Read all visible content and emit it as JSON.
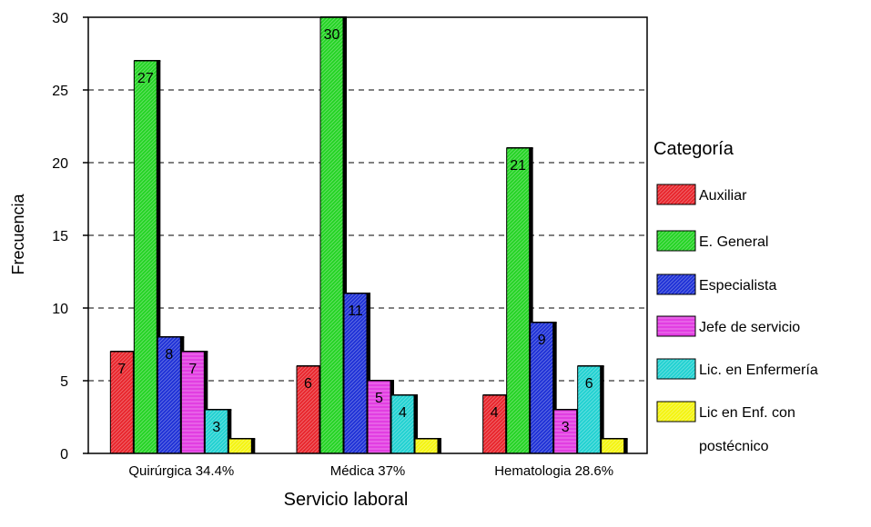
{
  "chart_data": {
    "type": "bar",
    "title": "",
    "xlabel": "Servicio laboral",
    "ylabel": "Frecuencia",
    "ylim": [
      0,
      30
    ],
    "yticks": [
      0,
      5,
      10,
      15,
      20,
      25,
      30
    ],
    "grid": "dashed horizontal",
    "legend_position": "right",
    "legend_title": "Categoría",
    "categories": [
      "Quirúrgica 34.4%",
      "Médica 37%",
      "Hematologia 28.6%"
    ],
    "series": [
      {
        "name": "Auxiliar",
        "legend_lines": [
          "Auxiliar"
        ],
        "color": "#e8232a",
        "pattern": "diagonal",
        "values": [
          7,
          6,
          4
        ]
      },
      {
        "name": "E. General",
        "legend_lines": [
          "E. General"
        ],
        "color": "#22d322",
        "pattern": "diagonal",
        "values": [
          27,
          30,
          21
        ]
      },
      {
        "name": "Especialista",
        "legend_lines": [
          "Especialista"
        ],
        "color": "#1c2fd6",
        "pattern": "diagonal",
        "values": [
          8,
          11,
          9
        ]
      },
      {
        "name": "Jefe de servicio",
        "legend_lines": [
          "Jefe de servicio"
        ],
        "color": "#e23ee2",
        "pattern": "horizontal",
        "values": [
          7,
          5,
          3
        ]
      },
      {
        "name": "Lic. en Enfermería",
        "legend_lines": [
          "Lic. en Enfermería"
        ],
        "color": "#1fd1d1",
        "pattern": "diagonal",
        "values": [
          3,
          4,
          6
        ]
      },
      {
        "name": "Lic en Enf. con postécnico",
        "legend_lines": [
          "Lic en Enf. con",
          "postécnico"
        ],
        "color": "#f4f40f",
        "pattern": "diagonal",
        "values": [
          1,
          1,
          1
        ]
      }
    ]
  }
}
